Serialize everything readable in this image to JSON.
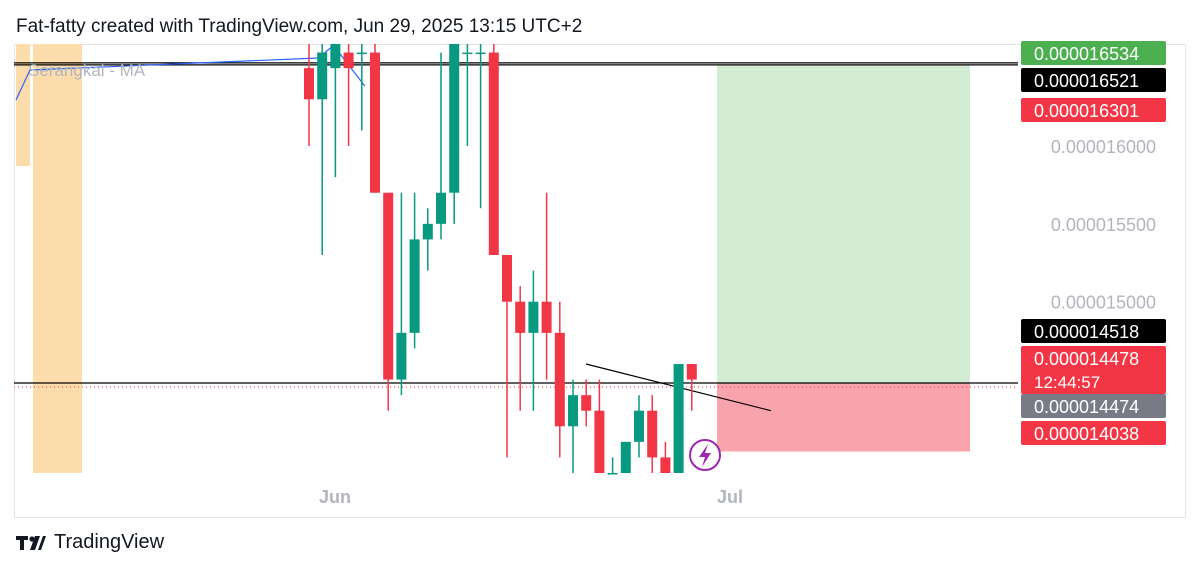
{
  "header": {
    "title": "Fat-fatty created with TradingView.com, Jun 29, 2025 13:15 UTC+2"
  },
  "brand": {
    "name": "TradingView"
  },
  "colors": {
    "up": "#089981",
    "down": "#f23645",
    "axis_text": "#b2b5be",
    "profit_zone": "#d3ecd4",
    "loss_zone": "#f9a3ad",
    "session_band": "#fddcac",
    "ma_line": "#2962ff",
    "label_green": "#4caf50",
    "label_black": "#000000",
    "label_red": "#f23645",
    "label_gray": "#787b86"
  },
  "chart_data": {
    "type": "candlestick",
    "symbol_note": "",
    "indicator": {
      "label": "Serangkai - MA"
    },
    "x_labels": [
      "Jun",
      "Jul"
    ],
    "y_ticks": [
      "0.000016000",
      "0.000015500",
      "0.000015000"
    ],
    "y_range": [
      1.39e-05,
      1.6655e-05
    ],
    "candles": [
      {
        "o": 1.65e-05,
        "h": 1.7e-05,
        "l": 1.6e-05,
        "c": 1.63e-05
      },
      {
        "o": 1.63e-05,
        "h": 1.67e-05,
        "l": 1.53e-05,
        "c": 1.66e-05
      },
      {
        "o": 1.65e-05,
        "h": 1.68e-05,
        "l": 1.58e-05,
        "c": 1.67e-05
      },
      {
        "o": 1.66e-05,
        "h": 1.67e-05,
        "l": 1.6e-05,
        "c": 1.65e-05
      },
      {
        "o": 1.66e-05,
        "h": 1.67e-05,
        "l": 1.61e-05,
        "c": 1.66e-05
      },
      {
        "o": 1.66e-05,
        "h": 1.67e-05,
        "l": 1.57e-05,
        "c": 1.57e-05
      },
      {
        "o": 1.57e-05,
        "h": 1.57e-05,
        "l": 1.43e-05,
        "c": 1.45e-05
      },
      {
        "o": 1.45e-05,
        "h": 1.57e-05,
        "l": 1.44e-05,
        "c": 1.48e-05
      },
      {
        "o": 1.48e-05,
        "h": 1.57e-05,
        "l": 1.47e-05,
        "c": 1.54e-05
      },
      {
        "o": 1.54e-05,
        "h": 1.56e-05,
        "l": 1.52e-05,
        "c": 1.55e-05
      },
      {
        "o": 1.55e-05,
        "h": 1.66e-05,
        "l": 1.54e-05,
        "c": 1.57e-05
      },
      {
        "o": 1.57e-05,
        "h": 1.67e-05,
        "l": 1.55e-05,
        "c": 1.67e-05
      },
      {
        "o": 1.66e-05,
        "h": 1.67e-05,
        "l": 1.6e-05,
        "c": 1.66e-05
      },
      {
        "o": 1.66e-05,
        "h": 1.67e-05,
        "l": 1.56e-05,
        "c": 1.66e-05
      },
      {
        "o": 1.66e-05,
        "h": 1.67e-05,
        "l": 1.53e-05,
        "c": 1.53e-05
      },
      {
        "o": 1.53e-05,
        "h": 1.53e-05,
        "l": 1.4e-05,
        "c": 1.5e-05
      },
      {
        "o": 1.5e-05,
        "h": 1.51e-05,
        "l": 1.43e-05,
        "c": 1.48e-05
      },
      {
        "o": 1.48e-05,
        "h": 1.52e-05,
        "l": 1.43e-05,
        "c": 1.5e-05
      },
      {
        "o": 1.5e-05,
        "h": 1.57e-05,
        "l": 1.45e-05,
        "c": 1.48e-05
      },
      {
        "o": 1.48e-05,
        "h": 1.5e-05,
        "l": 1.4e-05,
        "c": 1.42e-05
      },
      {
        "o": 1.42e-05,
        "h": 1.45e-05,
        "l": 1.39e-05,
        "c": 1.44e-05
      },
      {
        "o": 1.44e-05,
        "h": 1.45e-05,
        "l": 1.42e-05,
        "c": 1.43e-05
      },
      {
        "o": 1.43e-05,
        "h": 1.45e-05,
        "l": 1.39e-05,
        "c": 1.39e-05
      },
      {
        "o": 1.39e-05,
        "h": 1.4e-05,
        "l": 1.39e-05,
        "c": 1.39e-05
      },
      {
        "o": 1.39e-05,
        "h": 1.41e-05,
        "l": 1.39e-05,
        "c": 1.41e-05
      },
      {
        "o": 1.41e-05,
        "h": 1.44e-05,
        "l": 1.4e-05,
        "c": 1.43e-05
      },
      {
        "o": 1.43e-05,
        "h": 1.44e-05,
        "l": 1.39e-05,
        "c": 1.4e-05
      },
      {
        "o": 1.4e-05,
        "h": 1.41e-05,
        "l": 1.39e-05,
        "c": 1.39e-05
      },
      {
        "o": 1.39e-05,
        "h": 1.46e-05,
        "l": 1.39e-05,
        "c": 1.46e-05
      },
      {
        "o": 1.46e-05,
        "h": 1.46e-05,
        "l": 1.43e-05,
        "c": 1.45e-05
      }
    ],
    "horizontal_lines": [
      1.6534e-05,
      1.6521e-05,
      1.4478e-05
    ],
    "trendline": {
      "from": 1.46e-05,
      "to": 1.43e-05
    },
    "position": {
      "type": "long",
      "target": 1.6521e-05,
      "entry": 1.4478e-05,
      "stop": 1.4038e-05
    },
    "price_labels": [
      {
        "text": "0.000016534",
        "value": 1.6534e-05,
        "color": "#4caf50"
      },
      {
        "text": "0.000016521",
        "value": 1.6521e-05,
        "color": "#000000"
      },
      {
        "text": "0.000016301",
        "value": 1.6301e-05,
        "color": "#f23645"
      },
      {
        "text": "0.000014518",
        "value": 1.4518e-05,
        "color": "#000000"
      },
      {
        "text": "0.000014478",
        "value": 1.4478e-05,
        "color": "#f23645",
        "subtext": "12:44:57"
      },
      {
        "text": "0.000014474",
        "value": 1.4474e-05,
        "color": "#787b86"
      },
      {
        "text": "0.000014038",
        "value": 1.4038e-05,
        "color": "#f23645"
      }
    ]
  }
}
